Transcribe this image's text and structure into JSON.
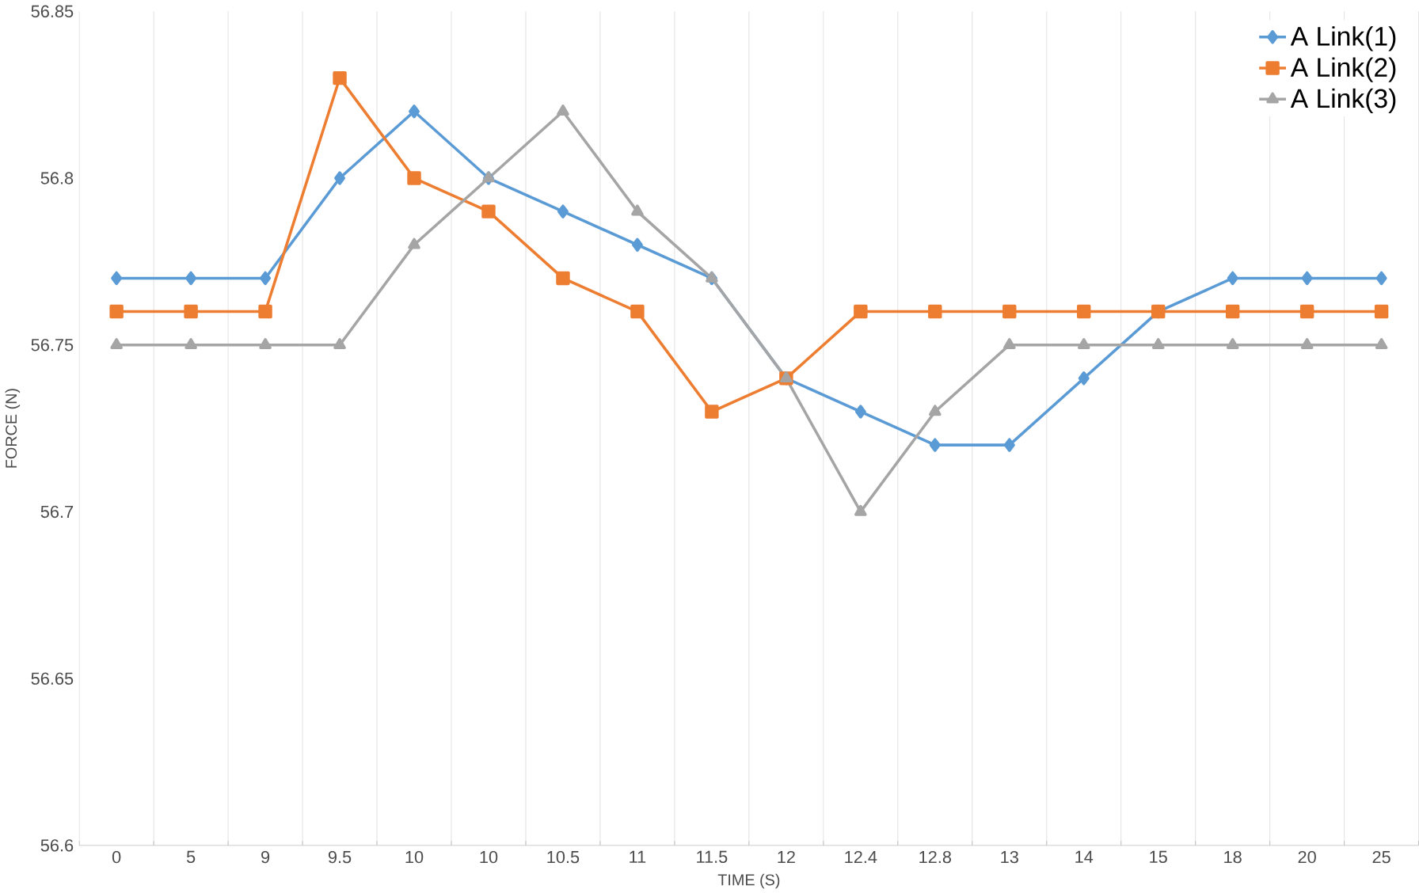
{
  "chart_data": {
    "type": "line",
    "xlabel": "TIME (S)",
    "ylabel": "FORCE (N)",
    "categories": [
      "0",
      "5",
      "9",
      "9.5",
      "10",
      "10",
      "10.5",
      "11",
      "11.5",
      "12",
      "12.4",
      "12.8",
      "13",
      "14",
      "15",
      "18",
      "20",
      "25"
    ],
    "series": [
      {
        "name": "A Link(1)",
        "color": "#5b9bd5",
        "marker": "diamond",
        "values": [
          56.77,
          56.77,
          56.77,
          56.8,
          56.82,
          56.8,
          56.79,
          56.78,
          56.77,
          56.74,
          56.73,
          56.72,
          56.72,
          56.74,
          56.76,
          56.77,
          56.77,
          56.77
        ]
      },
      {
        "name": "A Link(2)",
        "color": "#ed7d31",
        "marker": "square",
        "values": [
          56.76,
          56.76,
          56.76,
          56.83,
          56.8,
          56.79,
          56.77,
          56.76,
          56.73,
          56.74,
          56.76,
          56.76,
          56.76,
          56.76,
          56.76,
          56.76,
          56.76,
          56.76
        ]
      },
      {
        "name": "A Link(3)",
        "color": "#a5a5a5",
        "marker": "triangle",
        "values": [
          56.75,
          56.75,
          56.75,
          56.75,
          56.78,
          56.8,
          56.82,
          56.79,
          56.77,
          56.74,
          56.7,
          56.73,
          56.75,
          56.75,
          56.75,
          56.75,
          56.75,
          56.75
        ]
      }
    ],
    "ylim": [
      56.6,
      56.85
    ],
    "yticks": [
      56.6,
      56.65,
      56.7,
      56.75,
      56.8,
      56.85
    ],
    "grid": "x",
    "legend": "top right",
    "line_style": "solid"
  }
}
